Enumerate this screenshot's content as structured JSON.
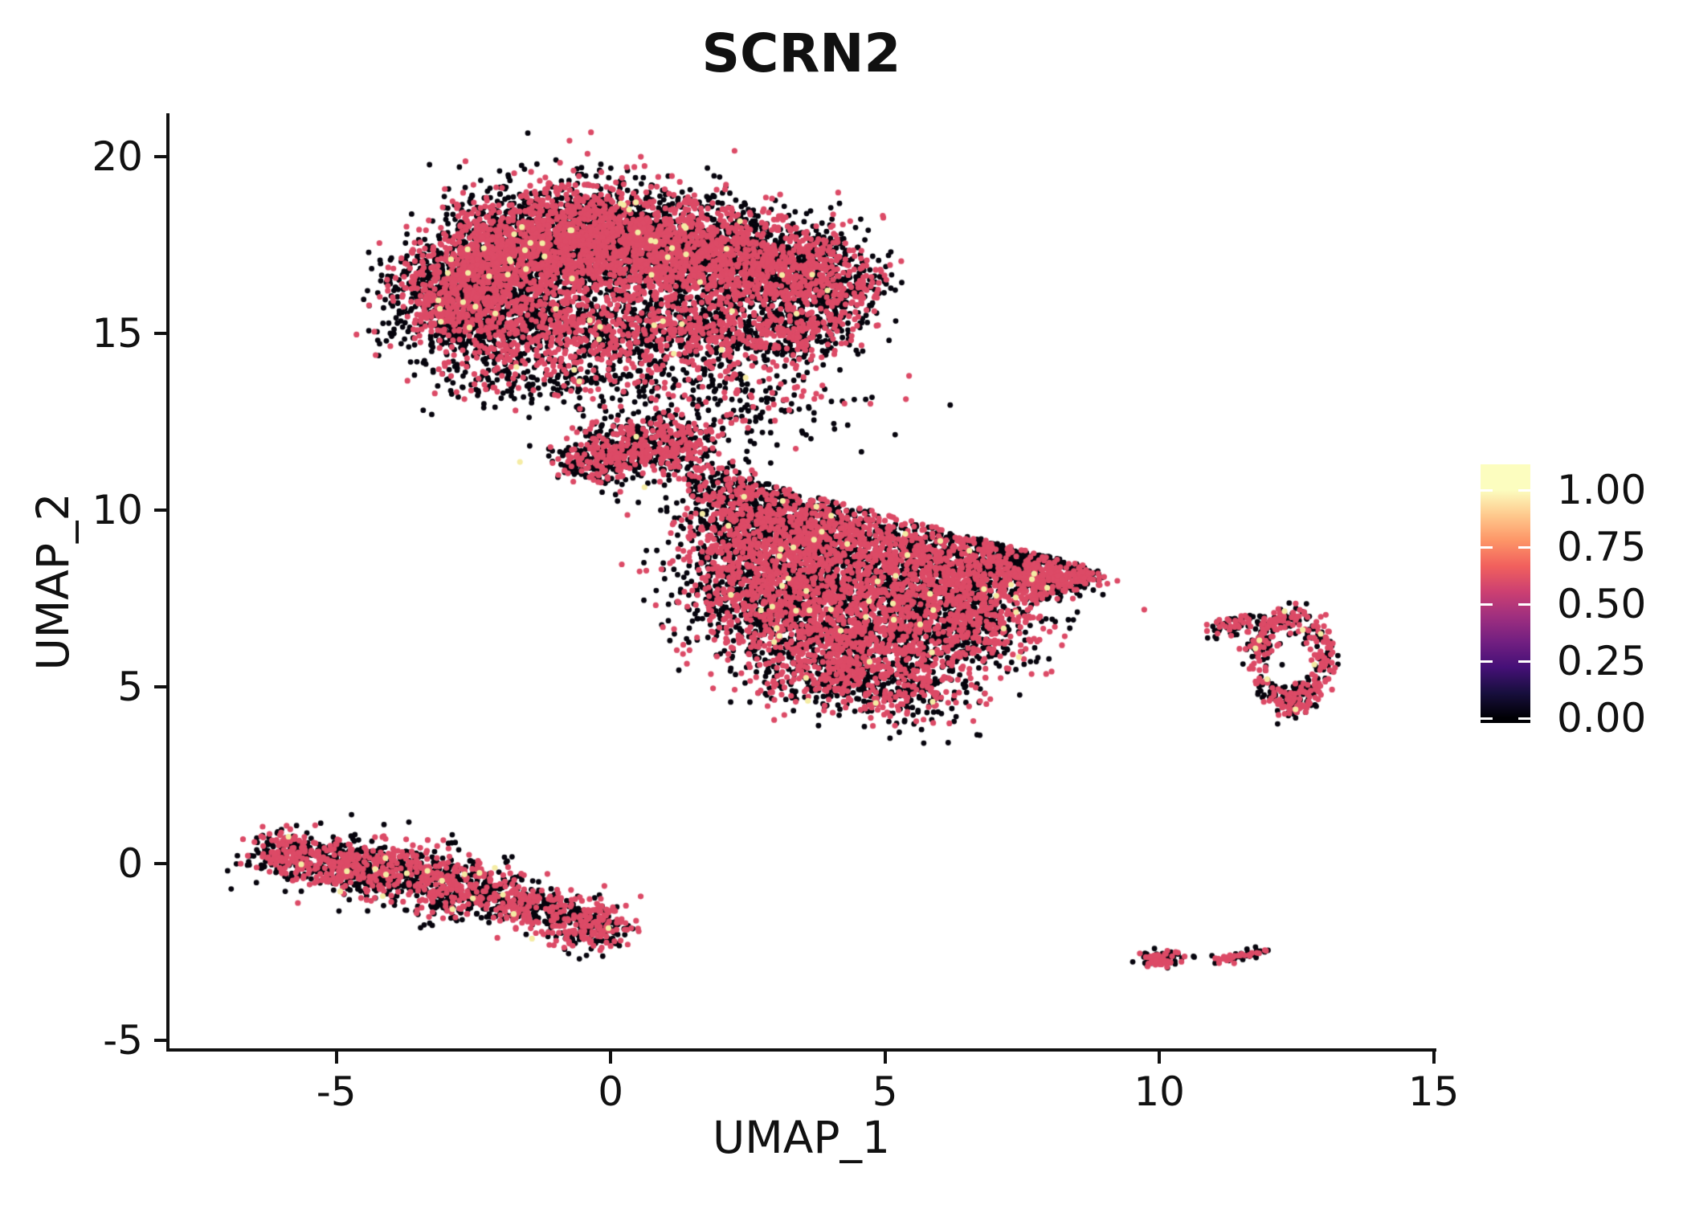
{
  "figure": {
    "background": "#ffffff",
    "text_color": "#111111",
    "axis_color": "#111111"
  },
  "chart_data": {
    "type": "scatter",
    "title": "SCRN2",
    "xlabel": "UMAP_1",
    "ylabel": "UMAP_2",
    "xlim": [
      -8.07,
      15.02
    ],
    "ylim": [
      -5.27,
      21.23
    ],
    "grid": false,
    "x_ticks": {
      "values": [
        -5,
        0,
        5,
        10,
        15
      ],
      "labels": [
        "-5",
        "0",
        "5",
        "10",
        "15"
      ]
    },
    "y_ticks": {
      "values": [
        20,
        15,
        10,
        5,
        0,
        -5
      ],
      "labels": [
        "20",
        "15",
        "10",
        "5",
        "0",
        "-5"
      ]
    },
    "point_radius_px": 3.5,
    "expression_palette": {
      "zero": "#06040D",
      "mid": "#DC4A66",
      "high": "#F5ECA4"
    },
    "colorbar": {
      "position": "right",
      "colormap": "magma",
      "tick_labels": [
        "1.00",
        "0.75",
        "0.50",
        "0.25",
        "0.00"
      ],
      "tick_values": [
        1.0,
        0.75,
        0.5,
        0.25,
        0.0
      ],
      "value_range": [
        0,
        1.11
      ],
      "gradient_stops": [
        "#000004",
        "#180f3e",
        "#451077",
        "#721f81",
        "#9f2f7f",
        "#cd4071",
        "#f1605d",
        "#fd9567",
        "#fec98d",
        "#fcfdbf"
      ]
    },
    "clusters": [
      {
        "name": "top-left-large",
        "red": 0.46,
        "yellow": 0.008,
        "blobs": [
          {
            "type": "gauss",
            "c": [
              -2.9,
              16.2
            ],
            "s": [
              0.55,
              0.7
            ],
            "n": 800,
            "red": 0.4
          },
          {
            "type": "gauss",
            "c": [
              -1.9,
              17.2
            ],
            "s": [
              0.7,
              0.85
            ],
            "n": 1300,
            "red": 0.48
          },
          {
            "type": "gauss",
            "c": [
              -0.5,
              17.7
            ],
            "s": [
              0.8,
              0.8
            ],
            "n": 1500,
            "red": 0.48
          },
          {
            "type": "gauss",
            "c": [
              1.0,
              17.4
            ],
            "s": [
              0.85,
              0.8
            ],
            "n": 1400,
            "red": 0.46
          },
          {
            "type": "gauss",
            "c": [
              2.6,
              16.9
            ],
            "s": [
              0.8,
              0.75
            ],
            "n": 1100,
            "red": 0.44
          },
          {
            "type": "gauss",
            "c": [
              3.9,
              16.4
            ],
            "s": [
              0.55,
              0.7
            ],
            "n": 600,
            "red": 0.4
          },
          {
            "type": "gauss",
            "c": [
              -2.2,
              15.3
            ],
            "s": [
              0.8,
              0.5
            ],
            "n": 500,
            "red": 0.4
          },
          {
            "type": "gauss",
            "c": [
              -0.3,
              15.2
            ],
            "s": [
              1.0,
              0.5
            ],
            "n": 600,
            "red": 0.42
          },
          {
            "type": "gauss",
            "c": [
              1.8,
              15.0
            ],
            "s": [
              0.8,
              0.5
            ],
            "n": 450,
            "red": 0.4
          },
          {
            "type": "gauss",
            "c": [
              3.3,
              14.9
            ],
            "s": [
              0.5,
              0.45
            ],
            "n": 250,
            "red": 0.38
          }
        ]
      },
      {
        "name": "scatter-below-top",
        "red": 0.33,
        "yellow": 0.005,
        "blobs": [
          {
            "type": "gauss",
            "c": [
              -1.8,
              13.9
            ],
            "s": [
              0.9,
              0.45
            ],
            "n": 220
          },
          {
            "type": "gauss",
            "c": [
              0.3,
              13.7
            ],
            "s": [
              1.0,
              0.55
            ],
            "n": 200
          },
          {
            "type": "gauss",
            "c": [
              2.6,
              13.2
            ],
            "s": [
              0.9,
              0.7
            ],
            "n": 190
          }
        ]
      },
      {
        "name": "bridge",
        "red": 0.44,
        "yellow": 0.006,
        "blobs": [
          {
            "type": "gauss",
            "c": [
              0.25,
              11.7
            ],
            "s": [
              0.55,
              0.4
            ],
            "n": 420
          },
          {
            "type": "gauss",
            "c": [
              1.15,
              11.95
            ],
            "s": [
              0.45,
              0.4
            ],
            "n": 260
          },
          {
            "type": "gauss",
            "c": [
              -0.35,
              11.3
            ],
            "s": [
              0.3,
              0.25
            ],
            "n": 110
          },
          {
            "type": "seg",
            "a": [
              1.6,
              11.0
            ],
            "b": [
              2.5,
              10.3
            ],
            "w": 0.28,
            "n": 130,
            "red": 0.35
          }
        ]
      },
      {
        "name": "center-large",
        "red": 0.46,
        "yellow": 0.008,
        "clip_above": {
          "x0": 2.6,
          "y0": 10.85,
          "slope": -0.4
        },
        "blobs": [
          {
            "type": "gauss",
            "c": [
              2.4,
              9.2
            ],
            "s": [
              0.65,
              0.8
            ],
            "n": 500,
            "red": 0.44
          },
          {
            "type": "gauss",
            "c": [
              3.4,
              9.4
            ],
            "s": [
              0.8,
              0.65
            ],
            "n": 800
          },
          {
            "type": "gauss",
            "c": [
              5.4,
              8.7
            ],
            "s": [
              1.05,
              0.7
            ],
            "n": 1100
          },
          {
            "type": "gauss",
            "c": [
              7.2,
              8.1
            ],
            "s": [
              0.65,
              0.5
            ],
            "n": 450
          },
          {
            "type": "gauss",
            "c": [
              2.9,
              7.4
            ],
            "s": [
              0.8,
              0.75
            ],
            "n": 850
          },
          {
            "type": "gauss",
            "c": [
              4.8,
              6.9
            ],
            "s": [
              1.05,
              0.85
            ],
            "n": 1250
          },
          {
            "type": "gauss",
            "c": [
              6.6,
              6.7
            ],
            "s": [
              0.7,
              0.65
            ],
            "n": 550
          },
          {
            "type": "gauss",
            "c": [
              3.9,
              5.5
            ],
            "s": [
              0.75,
              0.55
            ],
            "n": 450
          },
          {
            "type": "gauss",
            "c": [
              5.3,
              4.9
            ],
            "s": [
              0.65,
              0.5
            ],
            "n": 320,
            "red": 0.43
          },
          {
            "type": "seg",
            "a": [
              7.7,
              7.9
            ],
            "b": [
              8.8,
              8.15
            ],
            "w": 0.2,
            "n": 200,
            "red": 0.5
          },
          {
            "type": "gauss",
            "c": [
              2.6,
              10.3
            ],
            "s": [
              0.75,
              0.45
            ],
            "n": 180,
            "red": 0.3
          },
          {
            "type": "seg",
            "a": [
              6.8,
              9.2
            ],
            "b": [
              8.3,
              8.4
            ],
            "w": 0.3,
            "n": 150,
            "red": 0.25
          },
          {
            "type": "gauss",
            "c": [
              6.7,
              3.6
            ],
            "s": [
              0.06,
              0.05
            ],
            "n": 2,
            "red": 0
          }
        ]
      },
      {
        "name": "bottom-left-elongated",
        "red": 0.46,
        "yellow": 0.006,
        "blobs": [
          {
            "type": "seg",
            "a": [
              -6.25,
              0.32
            ],
            "b": [
              -4.3,
              -0.12
            ],
            "w": 0.36,
            "n": 600
          },
          {
            "type": "seg",
            "a": [
              -4.3,
              -0.12
            ],
            "b": [
              -2.1,
              -0.9
            ],
            "w": 0.44,
            "n": 720
          },
          {
            "type": "seg",
            "a": [
              -2.1,
              -0.9
            ],
            "b": [
              0.1,
              -1.93
            ],
            "w": 0.34,
            "n": 550
          }
        ]
      },
      {
        "name": "right-ring",
        "red": 0.55,
        "yellow": 0.02,
        "blobs": [
          {
            "type": "ring",
            "c": [
              12.4,
              5.8
            ],
            "r": [
              0.62,
              1.15
            ],
            "w": 0.18,
            "n": 330
          },
          {
            "type": "gauss",
            "c": [
              12.55,
              4.55
            ],
            "s": [
              0.22,
              0.22
            ],
            "n": 70,
            "red": 0.6
          },
          {
            "type": "seg",
            "a": [
              10.95,
              6.6
            ],
            "b": [
              11.8,
              6.95
            ],
            "w": 0.14,
            "n": 70,
            "red": 0.5
          },
          {
            "type": "gauss",
            "c": [
              11.85,
              6.2
            ],
            "s": [
              0.15,
              0.3
            ],
            "n": 40,
            "red": 0.45
          }
        ]
      },
      {
        "name": "bottom-right-islands",
        "red": 0.5,
        "yellow": 0.0,
        "blobs": [
          {
            "type": "gauss",
            "c": [
              10.0,
              -2.68
            ],
            "s": [
              0.2,
              0.13
            ],
            "n": 80,
            "red": 0.55
          },
          {
            "type": "seg",
            "a": [
              11.05,
              -2.73
            ],
            "b": [
              12.0,
              -2.5
            ],
            "w": 0.075,
            "n": 60,
            "red": 0.45
          },
          {
            "type": "gauss",
            "c": [
              10.63,
              -2.64
            ],
            "s": [
              0.02,
              0.02
            ],
            "n": 2,
            "red": 0
          }
        ]
      }
    ]
  }
}
